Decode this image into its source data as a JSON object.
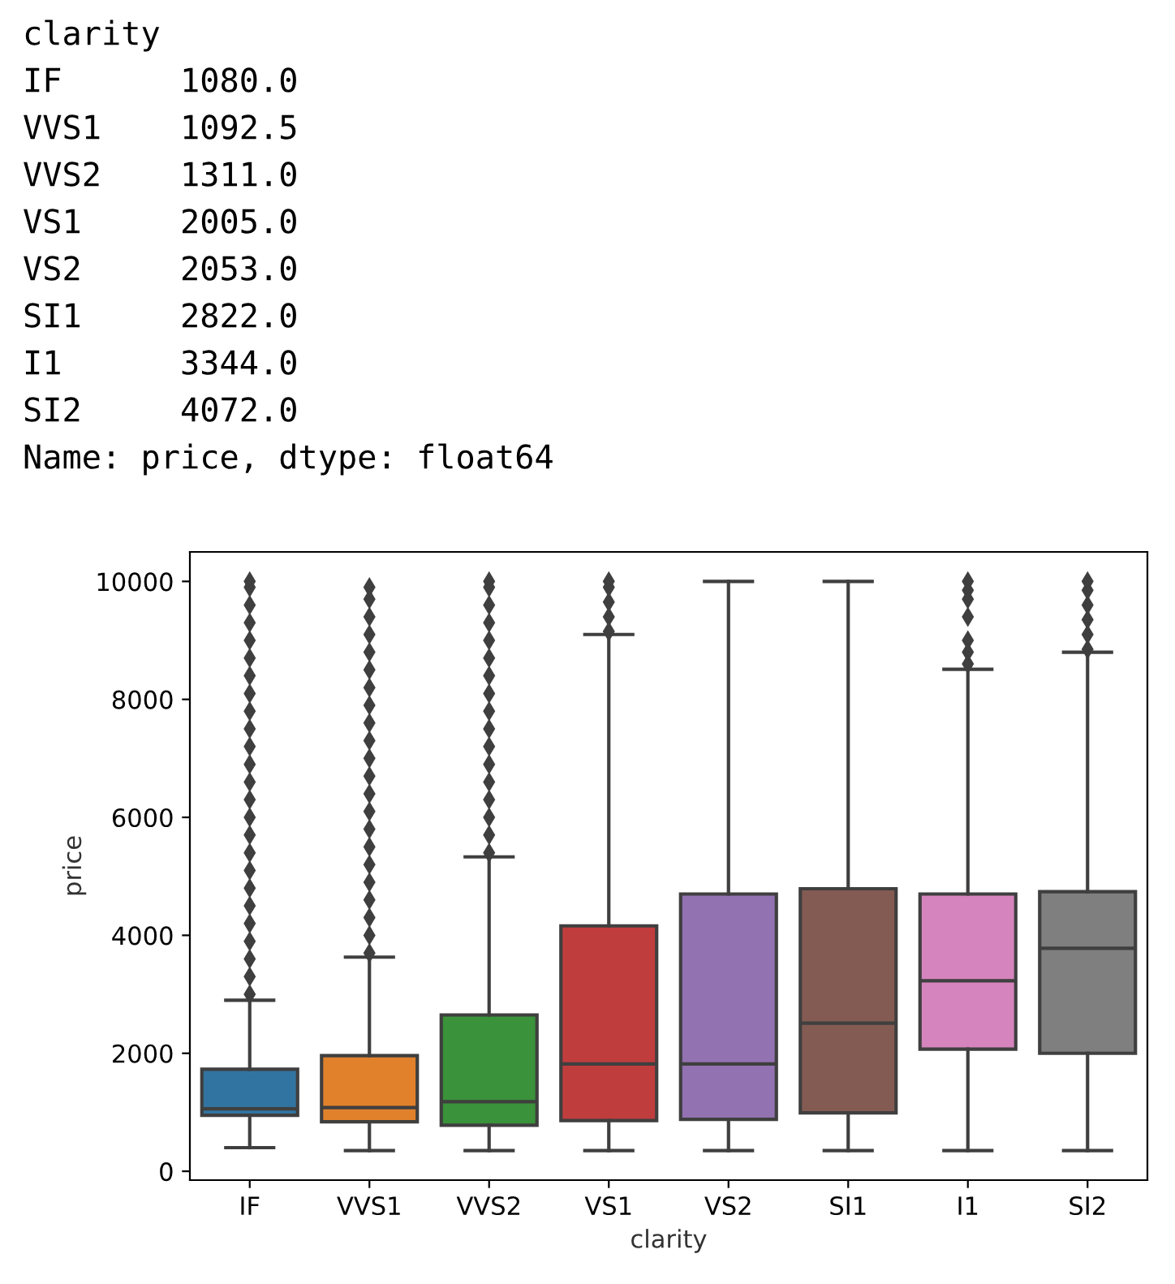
{
  "chart_data": {
    "type": "box",
    "xlabel": "clarity",
    "ylabel": "price",
    "annotations": [
      "clarity",
      "IF      1080.0",
      "VVS1    1092.5",
      "VVS2    1311.0",
      "VS1     2005.0",
      "VS2     2053.0",
      "SI1     2822.0",
      "I1      3344.0",
      "SI2     4072.0",
      "Name: price, dtype: float64"
    ],
    "categories": [
      "IF",
      "VVS1",
      "VVS2",
      "VS1",
      "VS2",
      "SI1",
      "I1",
      "SI2"
    ],
    "colors": [
      "#3274a1",
      "#e1812c",
      "#3a923a",
      "#c03d3e",
      "#9372b2",
      "#845b53",
      "#d684bd",
      "#7f7f7f"
    ],
    "boxes": [
      {
        "low": 400,
        "q1": 950,
        "median": 1060,
        "q3": 1730,
        "high": 2900,
        "outliers": [
          3000,
          3300,
          3600,
          3900,
          4200,
          4500,
          4800,
          5100,
          5400,
          5700,
          6000,
          6300,
          6600,
          6900,
          7200,
          7500,
          7800,
          8100,
          8400,
          8700,
          9000,
          9300,
          9600,
          9900,
          10000
        ]
      },
      {
        "low": 350,
        "q1": 840,
        "median": 1080,
        "q3": 1960,
        "high": 3630,
        "outliers": [
          3700,
          4000,
          4300,
          4600,
          4900,
          5200,
          5500,
          5800,
          6100,
          6400,
          6700,
          7000,
          7300,
          7600,
          7900,
          8200,
          8500,
          8800,
          9100,
          9400,
          9700,
          9900
        ]
      },
      {
        "low": 350,
        "q1": 780,
        "median": 1180,
        "q3": 2650,
        "high": 5330,
        "outliers": [
          5400,
          5700,
          6000,
          6300,
          6600,
          6900,
          7200,
          7500,
          7800,
          8100,
          8400,
          8700,
          9000,
          9300,
          9600,
          9900,
          10000
        ]
      },
      {
        "low": 350,
        "q1": 860,
        "median": 1820,
        "q3": 4160,
        "high": 9100,
        "outliers": [
          9150,
          9400,
          9650,
          9900,
          10000
        ]
      },
      {
        "low": 350,
        "q1": 880,
        "median": 1820,
        "q3": 4700,
        "high": 10000
      },
      {
        "low": 350,
        "q1": 990,
        "median": 2510,
        "q3": 4790,
        "high": 10000
      },
      {
        "low": 350,
        "q1": 2070,
        "median": 3230,
        "q3": 4700,
        "high": 8510,
        "outliers": [
          8600,
          8800,
          9000,
          9400,
          9700,
          9850,
          10000
        ]
      },
      {
        "low": 350,
        "q1": 2000,
        "median": 3780,
        "q3": 4740,
        "high": 8800,
        "outliers": [
          8850,
          9100,
          9350,
          9600,
          9850,
          10000
        ]
      }
    ],
    "ylim": [
      -150,
      10500
    ],
    "yticks": [
      0,
      2000,
      4000,
      6000,
      8000,
      10000
    ],
    "grid": false
  }
}
